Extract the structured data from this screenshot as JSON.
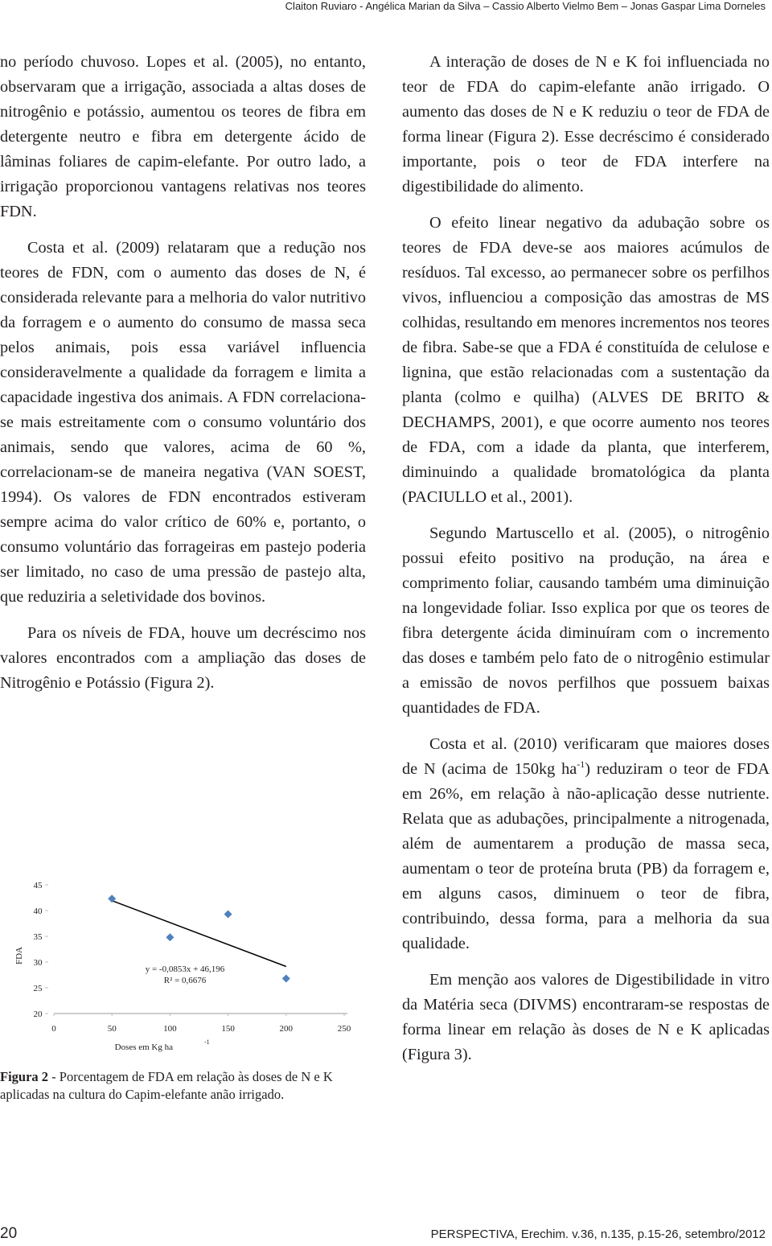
{
  "header": {
    "authors": "Claiton Ruviaro - Angélica Marian da Silva – Cassio Alberto Vielmo Bem – Jonas Gaspar Lima Dorneles"
  },
  "left_column": {
    "paragraphs": [
      "no período chuvoso. Lopes et al. (2005), no entanto, observaram que a irrigação, associada a altas doses de nitrogênio e potássio, aumentou os teores de fibra em detergente neutro e fibra em detergente ácido de lâminas foliares de capim-elefante. Por outro lado, a irrigação proporcionou vantagens relativas nos teores FDN.",
      "Costa et al. (2009) relataram que a redução nos teores de FDN, com o aumento das doses de N, é considerada relevante para a melhoria do valor nutritivo da forragem e o aumento do consumo de massa seca pelos animais, pois essa variável influencia consideravelmente a qualidade da forragem e limita a capacidade ingestiva dos animais. A FDN correlaciona-se mais estreitamente com o consumo voluntário dos animais, sendo que valores, acima de 60 %, correlacionam-se de maneira negativa (VAN SOEST, 1994). Os valores de FDN encontrados estiveram sempre acima do valor crítico de 60% e, portanto, o consumo voluntário das forrageiras em pastejo poderia ser limitado, no caso de uma pressão de pastejo alta, que reduziria a seletividade dos bovinos.",
      "Para os níveis de FDA, houve um decréscimo nos valores encontrados com a ampliação das doses de Nitrogênio e Potássio (Figura 2)."
    ]
  },
  "chart_data": {
    "type": "scatter",
    "y_label": "FDA",
    "x_label": "Doses em Kg ha",
    "x_label_sup": "-1",
    "x": [
      50,
      100,
      150,
      200
    ],
    "values": [
      42.3,
      34.8,
      39.3,
      26.8
    ],
    "color": "#4f81bd",
    "trendline": {
      "x": [
        50,
        200
      ],
      "values": [
        41.93,
        29.14
      ],
      "color": "#000000"
    },
    "equation": "y = -0,0853x + 46,196",
    "r_squared": "R² = 0,6676",
    "xlim": [
      0,
      250
    ],
    "xticks": [
      0,
      50,
      100,
      150,
      200,
      250
    ],
    "ylim": [
      20,
      45
    ],
    "yticks": [
      20,
      25,
      30,
      35,
      40,
      45
    ]
  },
  "caption": {
    "label": "Figura 2",
    "text": " - Porcentagem de FDA em relação às doses de N e K aplicadas na cultura do Capim-elefante anão irrigado."
  },
  "right_column": {
    "paragraphs": [
      "A interação de doses de N e K foi influenciada no teor de FDA do capim-elefante anão irrigado. O aumento das doses de N e K reduziu o teor de FDA de forma linear (Figura 2). Esse decréscimo é considerado importante, pois o teor de FDA interfere na digestibilidade do alimento.",
      "O efeito linear negativo da adubação sobre os teores de FDA deve-se aos maiores acúmulos de resíduos. Tal excesso, ao permanecer sobre os perfilhos vivos, influenciou a composição das amostras de MS colhidas, resultando em menores incrementos nos teores de fibra. Sabe-se que a FDA é constituída de celulose e lignina, que estão relacionadas com a sustentação da planta (colmo e quilha) (ALVES DE BRITO & DECHAMPS, 2001), e que ocorre aumento nos teores de FDA, com a idade da planta, que interferem, diminuindo a qualidade bromatológica da planta (PACIULLO et al., 2001).",
      "Segundo Martuscello et al. (2005), o nitrogênio possui efeito positivo na produção, na área e comprimento foliar, causando também uma diminuição na longevidade foliar. Isso explica por que os teores de fibra detergente ácida diminuíram com o incremento das doses e também pelo fato de o nitrogênio estimular a emissão de novos perfilhos que possuem baixas quantidades de FDA.",
      [
        "Costa et al. (2010) verificaram que maiores doses de N (acima de 150kg ha",
        "-1",
        ") reduziram o teor de FDA em 26%, em relação à não-aplicação desse nutriente. Relata que as adubações, principalmente a nitrogenada, além de aumentarem a produção de massa seca, aumentam o teor de proteína bruta (PB) da forragem e, em alguns casos, diminuem o teor de fibra, contribuindo, dessa forma, para a melhoria da sua qualidade."
      ],
      "Em menção aos valores de Digestibilidade in vitro da Matéria seca (DIVMS) encontraram-se respostas de forma linear em relação às doses de N e K aplicadas (Figura 3)."
    ]
  },
  "footer": {
    "page_number": "20",
    "journal": "PERSPECTIVA, Erechim. v.36, n.135, p.15-26, setembro/2012"
  }
}
